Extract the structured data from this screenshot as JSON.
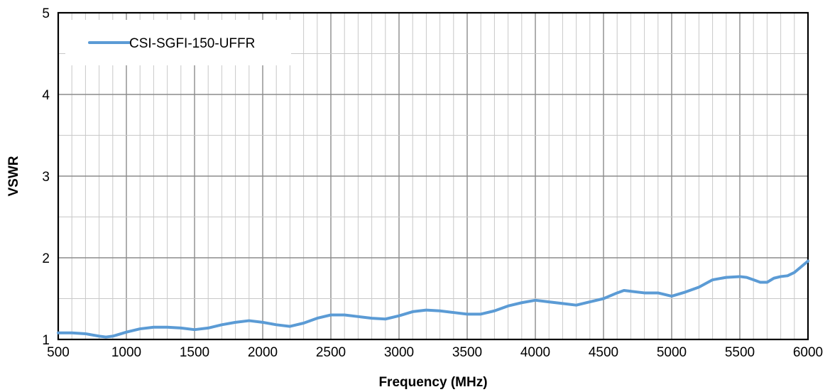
{
  "chart_data": {
    "type": "line",
    "title": "",
    "xlabel": "Frequency (MHz)",
    "ylabel": "VSWR",
    "xlim": [
      500,
      6000
    ],
    "ylim": [
      1,
      5
    ],
    "x_major_ticks": [
      500,
      1000,
      1500,
      2000,
      2500,
      3000,
      3500,
      4000,
      4500,
      5000,
      5500,
      6000
    ],
    "x_tick_labels": [
      "500",
      "1000",
      "1500",
      "2000",
      "2500",
      "3000",
      "3500",
      "4000",
      "4500",
      "5000",
      "5500",
      "6000"
    ],
    "x_minor_step": 100,
    "y_major_ticks": [
      1,
      2,
      3,
      4,
      5
    ],
    "y_tick_labels": [
      "1",
      "2",
      "3",
      "4",
      "5"
    ],
    "y_minor_step": 0.5,
    "grid": true,
    "legend_position": "top-left",
    "series": [
      {
        "name": "CSI-SGFI-150-UFFR",
        "color": "#5b9bd5",
        "x": [
          500,
          600,
          700,
          800,
          850,
          900,
          1000,
          1100,
          1200,
          1300,
          1400,
          1500,
          1600,
          1700,
          1800,
          1900,
          2000,
          2100,
          2200,
          2300,
          2400,
          2500,
          2600,
          2700,
          2800,
          2900,
          3000,
          3100,
          3200,
          3300,
          3400,
          3500,
          3600,
          3700,
          3800,
          3900,
          4000,
          4100,
          4200,
          4300,
          4400,
          4500,
          4600,
          4650,
          4700,
          4800,
          4900,
          5000,
          5100,
          5200,
          5300,
          5400,
          5500,
          5550,
          5600,
          5650,
          5700,
          5750,
          5800,
          5850,
          5900,
          6000
        ],
        "y": [
          1.08,
          1.08,
          1.07,
          1.04,
          1.03,
          1.04,
          1.09,
          1.13,
          1.15,
          1.15,
          1.14,
          1.12,
          1.14,
          1.18,
          1.21,
          1.23,
          1.21,
          1.18,
          1.16,
          1.2,
          1.26,
          1.3,
          1.3,
          1.28,
          1.26,
          1.25,
          1.29,
          1.34,
          1.36,
          1.35,
          1.33,
          1.31,
          1.31,
          1.35,
          1.41,
          1.45,
          1.48,
          1.46,
          1.44,
          1.42,
          1.46,
          1.5,
          1.57,
          1.6,
          1.59,
          1.57,
          1.57,
          1.53,
          1.58,
          1.64,
          1.73,
          1.76,
          1.77,
          1.76,
          1.73,
          1.7,
          1.7,
          1.75,
          1.77,
          1.78,
          1.82,
          1.96
        ]
      }
    ]
  }
}
